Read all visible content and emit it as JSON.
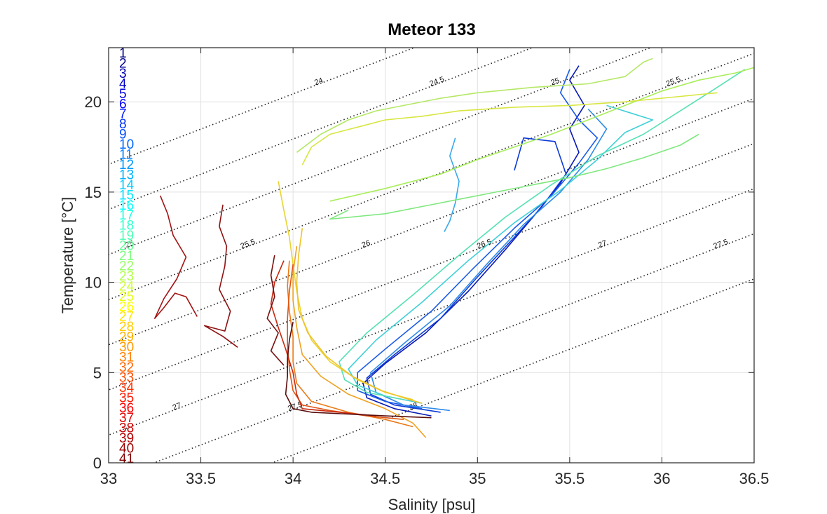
{
  "chart_data": {
    "type": "line",
    "title": "Meteor 133",
    "xlabel": "Salinity [psu]",
    "ylabel": "Temperature [°C]",
    "xlim": [
      33,
      36.5
    ],
    "ylim": [
      0,
      23
    ],
    "xticks": [
      33,
      33.5,
      34,
      34.5,
      35,
      35.5,
      36,
      36.5
    ],
    "xtick_labels": [
      "33",
      "33.5",
      "34",
      "34.5",
      "35",
      "35.5",
      "36",
      "36.5"
    ],
    "yticks": [
      0,
      5,
      10,
      15,
      20
    ],
    "ytick_labels": [
      "0",
      "5",
      "10",
      "15",
      "20"
    ],
    "grid": true,
    "isopycnals": {
      "style": "dotted",
      "levels": [
        24,
        24.5,
        25,
        25.5,
        26,
        26.5,
        27,
        27.5,
        28
      ]
    },
    "station_labels": [
      "1",
      "2",
      "3",
      "4",
      "5",
      "6",
      "7",
      "8",
      "9",
      "10",
      "11",
      "12",
      "13",
      "14",
      "15",
      "16",
      "17",
      "18",
      "19",
      "20",
      "21",
      "22",
      "23",
      "24",
      "25",
      "26",
      "27",
      "28",
      "29",
      "30",
      "31",
      "32",
      "33",
      "34",
      "35",
      "36",
      "37",
      "38",
      "39",
      "40",
      "41"
    ],
    "series": [
      {
        "color": "#0a1ab5",
        "points": [
          [
            34.75,
            2.6
          ],
          [
            34.55,
            3.0
          ],
          [
            34.4,
            3.6
          ],
          [
            34.38,
            4.4
          ],
          [
            34.5,
            5.5
          ],
          [
            34.72,
            7.2
          ],
          [
            34.95,
            9.5
          ],
          [
            35.15,
            11.8
          ],
          [
            35.3,
            13.6
          ],
          [
            35.45,
            15.5
          ],
          [
            35.55,
            17.2
          ],
          [
            35.5,
            18.5
          ],
          [
            35.58,
            19.8
          ],
          [
            35.5,
            21.2
          ],
          [
            35.55,
            22.0
          ]
        ]
      },
      {
        "color": "#0d3bd8",
        "points": [
          [
            34.8,
            2.8
          ],
          [
            34.55,
            3.2
          ],
          [
            34.42,
            3.8
          ],
          [
            34.4,
            4.7
          ],
          [
            34.55,
            6.0
          ],
          [
            34.8,
            8.0
          ],
          [
            35.0,
            10.3
          ],
          [
            35.2,
            12.5
          ],
          [
            35.35,
            14.2
          ],
          [
            35.48,
            16.0
          ],
          [
            35.42,
            17.8
          ],
          [
            35.25,
            18.0
          ],
          [
            35.2,
            16.2
          ]
        ]
      },
      {
        "color": "#1a5ae6",
        "points": [
          [
            34.7,
            3.0
          ],
          [
            34.5,
            3.4
          ],
          [
            34.35,
            4.0
          ],
          [
            34.35,
            5.0
          ],
          [
            34.5,
            6.3
          ],
          [
            34.75,
            8.4
          ],
          [
            34.98,
            10.8
          ],
          [
            35.2,
            13.0
          ],
          [
            35.4,
            14.8
          ],
          [
            35.55,
            16.6
          ],
          [
            35.65,
            18.0
          ],
          [
            35.55,
            19.0
          ],
          [
            35.45,
            20.5
          ],
          [
            35.5,
            21.8
          ]
        ]
      },
      {
        "color": "#2e8ae8",
        "points": [
          [
            34.85,
            2.9
          ],
          [
            34.6,
            3.2
          ],
          [
            34.45,
            3.9
          ],
          [
            34.42,
            5.0
          ],
          [
            34.6,
            6.6
          ],
          [
            34.85,
            8.7
          ],
          [
            35.05,
            11.0
          ],
          [
            35.25,
            13.2
          ],
          [
            35.45,
            15.0
          ],
          [
            35.6,
            16.8
          ],
          [
            35.7,
            18.5
          ],
          [
            35.6,
            19.6
          ]
        ]
      },
      {
        "color": "#38a8ea",
        "points": [
          [
            34.88,
            18.0
          ],
          [
            34.85,
            17.0
          ],
          [
            34.9,
            15.6
          ],
          [
            34.88,
            14.4
          ],
          [
            34.85,
            13.4
          ],
          [
            34.82,
            12.8
          ]
        ]
      },
      {
        "color": "#3fd0d8",
        "points": [
          [
            34.7,
            3.3
          ],
          [
            34.5,
            3.7
          ],
          [
            34.35,
            4.3
          ],
          [
            34.3,
            5.2
          ],
          [
            34.45,
            6.8
          ],
          [
            34.7,
            8.9
          ],
          [
            34.95,
            11.2
          ],
          [
            35.2,
            13.3
          ],
          [
            35.45,
            15.1
          ],
          [
            35.65,
            16.8
          ],
          [
            35.8,
            18.3
          ],
          [
            35.95,
            19.0
          ],
          [
            35.7,
            19.8
          ]
        ]
      },
      {
        "color": "#55e0b5",
        "points": [
          [
            34.6,
            3.5
          ],
          [
            34.4,
            3.9
          ],
          [
            34.28,
            4.6
          ],
          [
            34.25,
            5.6
          ],
          [
            34.4,
            7.2
          ],
          [
            34.65,
            9.3
          ],
          [
            34.9,
            11.5
          ],
          [
            35.15,
            13.6
          ],
          [
            35.4,
            15.4
          ],
          [
            35.65,
            17.0
          ],
          [
            35.9,
            18.2
          ],
          [
            36.1,
            19.5
          ],
          [
            36.3,
            20.8
          ],
          [
            36.45,
            21.8
          ]
        ]
      },
      {
        "color": "#7fe87e",
        "points": [
          [
            34.3,
            14.0
          ],
          [
            34.2,
            13.5
          ],
          [
            34.5,
            13.8
          ],
          [
            34.7,
            14.2
          ],
          [
            34.9,
            14.6
          ],
          [
            35.1,
            15.0
          ],
          [
            35.3,
            15.4
          ],
          [
            35.5,
            15.8
          ],
          [
            35.7,
            16.3
          ],
          [
            35.9,
            16.9
          ],
          [
            36.1,
            17.6
          ],
          [
            36.2,
            18.2
          ]
        ]
      },
      {
        "color": "#a8ee5a",
        "points": [
          [
            34.2,
            14.5
          ],
          [
            34.5,
            15.2
          ],
          [
            34.8,
            16.0
          ],
          [
            35.0,
            16.8
          ],
          [
            35.2,
            17.5
          ],
          [
            35.4,
            18.2
          ],
          [
            35.6,
            19.0
          ],
          [
            35.8,
            19.8
          ],
          [
            36.0,
            20.6
          ],
          [
            36.2,
            21.2
          ],
          [
            36.4,
            21.6
          ],
          [
            36.5,
            21.9
          ]
        ]
      },
      {
        "color": "#b5e865",
        "points": [
          [
            34.02,
            17.2
          ],
          [
            34.15,
            18.2
          ],
          [
            34.3,
            19.0
          ],
          [
            34.45,
            19.5
          ],
          [
            34.6,
            19.8
          ],
          [
            34.8,
            20.2
          ],
          [
            35.0,
            20.5
          ],
          [
            35.3,
            20.8
          ],
          [
            35.6,
            21.0
          ],
          [
            35.8,
            21.4
          ],
          [
            35.9,
            22.2
          ],
          [
            35.95,
            22.4
          ]
        ]
      },
      {
        "color": "#d8e640",
        "points": [
          [
            34.05,
            16.5
          ],
          [
            34.1,
            17.5
          ],
          [
            34.2,
            18.2
          ],
          [
            34.35,
            18.6
          ],
          [
            34.5,
            19.0
          ],
          [
            34.7,
            19.2
          ],
          [
            34.9,
            19.5
          ],
          [
            35.2,
            19.7
          ],
          [
            35.5,
            19.8
          ],
          [
            35.8,
            20.0
          ],
          [
            36.1,
            20.3
          ],
          [
            36.3,
            20.5
          ]
        ]
      },
      {
        "color": "#e8d430",
        "points": [
          [
            33.92,
            15.6
          ],
          [
            33.95,
            14.0
          ],
          [
            33.98,
            12.5
          ],
          [
            34.0,
            11.0
          ],
          [
            34.02,
            9.5
          ],
          [
            34.05,
            8.0
          ],
          [
            34.1,
            6.8
          ],
          [
            34.2,
            5.6
          ],
          [
            34.35,
            4.6
          ],
          [
            34.5,
            3.9
          ],
          [
            34.65,
            3.5
          ]
        ]
      },
      {
        "color": "#f0c228",
        "points": [
          [
            34.05,
            13.0
          ],
          [
            34.03,
            11.5
          ],
          [
            34.02,
            10.0
          ],
          [
            34.03,
            8.5
          ],
          [
            34.08,
            7.2
          ],
          [
            34.18,
            5.9
          ],
          [
            34.32,
            4.8
          ],
          [
            34.48,
            4.0
          ],
          [
            34.6,
            3.6
          ],
          [
            34.7,
            3.3
          ]
        ]
      },
      {
        "color": "#f0a11f",
        "points": [
          [
            34.02,
            12.0
          ],
          [
            34.0,
            10.5
          ],
          [
            34.0,
            9.0
          ],
          [
            34.02,
            7.5
          ],
          [
            34.05,
            6.0
          ],
          [
            34.15,
            4.8
          ],
          [
            34.3,
            3.8
          ],
          [
            34.5,
            3.0
          ],
          [
            34.65,
            2.2
          ],
          [
            34.72,
            1.4
          ]
        ]
      },
      {
        "color": "#ea7a17",
        "points": [
          [
            33.98,
            11.2
          ],
          [
            33.97,
            9.8
          ],
          [
            33.98,
            8.4
          ],
          [
            34.0,
            7.0
          ],
          [
            34.0,
            5.6
          ],
          [
            34.02,
            4.4
          ],
          [
            34.1,
            3.4
          ],
          [
            34.3,
            2.8
          ],
          [
            34.5,
            2.4
          ],
          [
            34.65,
            2.0
          ]
        ]
      },
      {
        "color": "#e05514",
        "points": [
          [
            34.0,
            11.0
          ],
          [
            33.98,
            9.5
          ],
          [
            33.97,
            8.0
          ],
          [
            33.97,
            6.5
          ],
          [
            33.98,
            5.2
          ],
          [
            34.0,
            4.0
          ],
          [
            34.05,
            3.2
          ],
          [
            34.2,
            2.9
          ],
          [
            34.4,
            2.6
          ],
          [
            34.6,
            2.4
          ]
        ]
      },
      {
        "color": "#c8280e",
        "points": [
          [
            33.95,
            11.2
          ],
          [
            33.9,
            10.0
          ],
          [
            33.88,
            8.8
          ],
          [
            33.92,
            7.5
          ],
          [
            33.96,
            6.3
          ],
          [
            34.0,
            5.0
          ],
          [
            34.02,
            3.8
          ],
          [
            34.05,
            3.0
          ],
          [
            34.25,
            2.8
          ],
          [
            34.45,
            2.6
          ]
        ]
      },
      {
        "color": "#a31414",
        "points": [
          [
            33.28,
            14.8
          ],
          [
            33.32,
            13.8
          ],
          [
            33.35,
            12.6
          ],
          [
            33.42,
            11.4
          ],
          [
            33.37,
            10.2
          ],
          [
            33.3,
            9.1
          ],
          [
            33.25,
            8.0
          ],
          [
            33.3,
            8.6
          ],
          [
            33.36,
            9.4
          ],
          [
            33.42,
            9.2
          ],
          [
            33.48,
            8.1
          ]
        ]
      },
      {
        "color": "#8e1212",
        "points": [
          [
            33.62,
            14.3
          ],
          [
            33.6,
            13.1
          ],
          [
            33.64,
            12.0
          ],
          [
            33.63,
            10.9
          ],
          [
            33.6,
            9.6
          ],
          [
            33.66,
            8.4
          ],
          [
            33.63,
            7.3
          ],
          [
            33.52,
            7.6
          ],
          [
            33.62,
            7.0
          ],
          [
            33.7,
            6.4
          ]
        ]
      },
      {
        "color": "#7a1010",
        "points": [
          [
            33.9,
            11.5
          ],
          [
            33.88,
            10.4
          ],
          [
            33.9,
            9.2
          ],
          [
            33.86,
            8.0
          ],
          [
            33.92,
            7.2
          ],
          [
            33.88,
            6.2
          ],
          [
            33.95,
            5.4
          ]
        ]
      },
      {
        "color": "#5a0d0d",
        "points": [
          [
            34.0,
            7.8
          ],
          [
            33.98,
            6.8
          ],
          [
            33.97,
            5.8
          ],
          [
            33.97,
            4.8
          ],
          [
            33.96,
            3.8
          ],
          [
            34.0,
            3.0
          ],
          [
            34.1,
            2.8
          ],
          [
            34.3,
            2.7
          ],
          [
            34.5,
            2.6
          ],
          [
            34.75,
            2.5
          ]
        ]
      }
    ]
  }
}
